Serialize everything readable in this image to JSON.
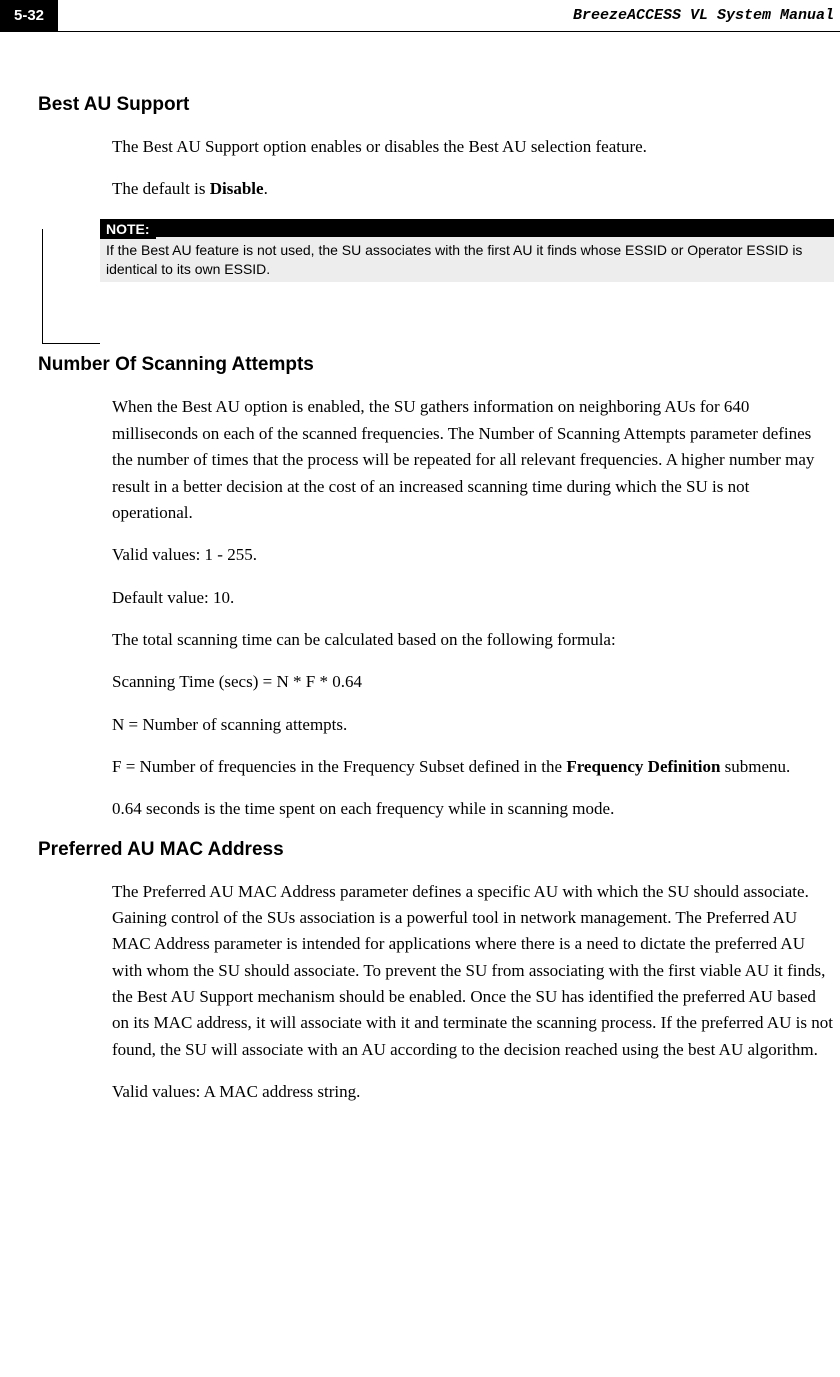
{
  "header": {
    "page_number": "5-32",
    "manual_title": "BreezeACCESS VL System Manual"
  },
  "colors": {
    "page_bg": "#ffffff",
    "header_box_bg": "#000000",
    "header_box_fg": "#ffffff",
    "note_header_bg": "#000000",
    "note_header_fg": "#ffffff",
    "note_body_bg": "#ededed",
    "text": "#000000"
  },
  "sections": {
    "best_au_support": {
      "heading": "Best AU Support",
      "para1": "The Best AU Support option enables or disables the Best AU selection feature.",
      "para2_pre": "The default is ",
      "para2_bold": "Disable",
      "para2_post": "."
    },
    "note": {
      "label": "NOTE:",
      "body": "If the Best AU feature is not used, the SU associates with the first AU it finds whose ESSID or Operator ESSID is identical to its own ESSID."
    },
    "number_scanning": {
      "heading": "Number Of Scanning Attempts",
      "para1": "When the Best AU option is enabled, the SU gathers information on neighboring AUs for 640 milliseconds on each of the scanned frequencies. The Number of Scanning Attempts parameter defines the number of times that the process will be repeated for all relevant frequencies.  A higher number may result in a better decision at the cost of an increased scanning time during which the SU is not operational.",
      "para2": "Valid values: 1 - 255.",
      "para3": "Default value: 10.",
      "para4": "The total scanning time can be calculated based on the following formula:",
      "para5": "Scanning Time (secs) = N * F * 0.64",
      "para6": "N = Number of scanning attempts.",
      "para7_pre": "F = Number of frequencies in the Frequency Subset defined in the ",
      "para7_bold": "Frequency Definition",
      "para7_post": " submenu.",
      "para8": "0.64 seconds is the time spent on each frequency while in scanning mode."
    },
    "preferred_au": {
      "heading": "Preferred AU MAC Address",
      "para1": "The Preferred AU MAC Address parameter defines a specific AU with which the SU should associate. Gaining control of the SUs association is a powerful tool in network management. The Preferred AU MAC Address parameter is intended for applications where there is a need to dictate the preferred AU with whom the SU should associate. To prevent the SU from associating with the first viable AU it finds, the Best AU Support mechanism should be enabled. Once the SU has identified the preferred AU based on its MAC address, it will associate with it and terminate the scanning process. If the preferred AU is not found, the SU will associate with an AU according to the decision reached using the best AU algorithm.",
      "para2": "Valid values: A MAC address string."
    }
  }
}
